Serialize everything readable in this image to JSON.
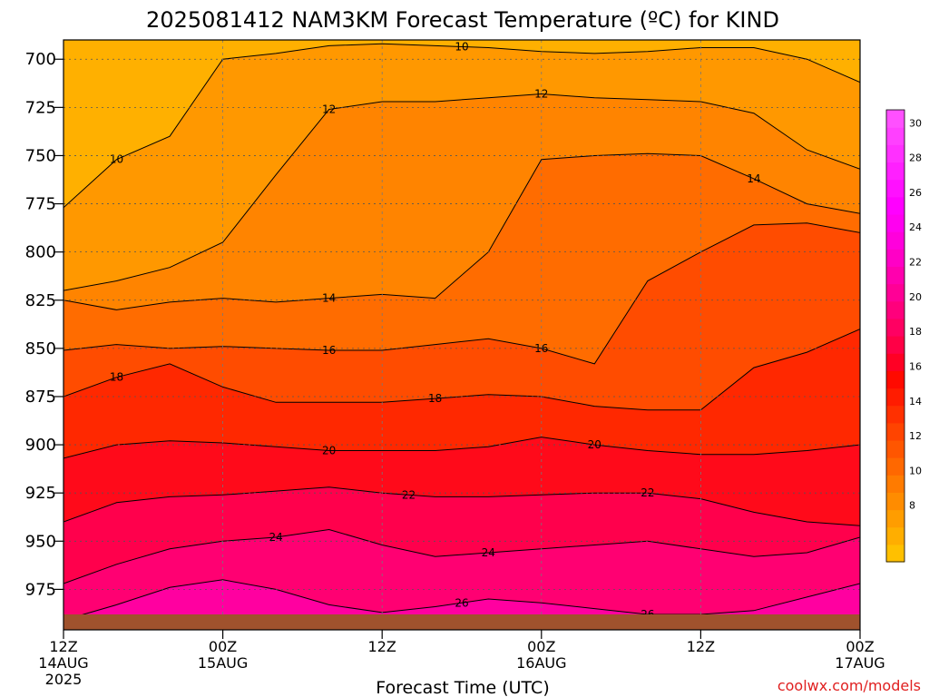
{
  "chart_data": {
    "type": "heatmap",
    "title": "2025081412 NAM3KM Forecast Temperature (ºC) for KIND",
    "xlabel": "Forecast Time (UTC)",
    "credit": "coolwx.com/models",
    "y_axis": {
      "ticks": [
        "700",
        "725",
        "750",
        "775",
        "800",
        "825",
        "850",
        "875",
        "900",
        "925",
        "950",
        "975"
      ],
      "range_hpa": [
        690,
        996
      ],
      "inverted": true,
      "grid": true
    },
    "x_axis": {
      "range_hours": [
        0,
        60
      ],
      "grid": true,
      "ticks": [
        {
          "hour": 0,
          "line1": "12Z",
          "line2": "14AUG",
          "line3": "2025"
        },
        {
          "hour": 12,
          "line1": "00Z",
          "line2": "15AUG",
          "line3": ""
        },
        {
          "hour": 24,
          "line1": "12Z",
          "line2": "",
          "line3": ""
        },
        {
          "hour": 36,
          "line1": "00Z",
          "line2": "16AUG",
          "line3": ""
        },
        {
          "hour": 48,
          "line1": "12Z",
          "line2": "",
          "line3": ""
        },
        {
          "hour": 60,
          "line1": "00Z",
          "line2": "17AUG",
          "line3": ""
        }
      ]
    },
    "colorbar": {
      "labels": [
        "8",
        "10",
        "12",
        "14",
        "16",
        "18",
        "20",
        "22",
        "24",
        "26",
        "28",
        "30"
      ],
      "levels": [
        6,
        7,
        8,
        9,
        10,
        11,
        12,
        13,
        14,
        15,
        16,
        17,
        18,
        19,
        20,
        21,
        22,
        23,
        24,
        25,
        26,
        27,
        28,
        29,
        30,
        31,
        32
      ],
      "colors": [
        "#ffc000",
        "#ffae00",
        "#ff9d00",
        "#ff8c00",
        "#ff7b00",
        "#ff6800",
        "#ff5600",
        "#ff4400",
        "#ff3000",
        "#ff1c00",
        "#ff0a00",
        "#ff0024",
        "#ff0046",
        "#ff0062",
        "#ff007c",
        "#ff0096",
        "#ff00ae",
        "#ff00c6",
        "#ff00dc",
        "#ff00f0",
        "#ff00ff",
        "#ff10ff",
        "#ff20ff",
        "#ff30ff",
        "#ff40ff",
        "#ff50ff"
      ]
    },
    "contour_labels": {
      "levels": [
        10,
        12,
        14,
        16,
        18,
        20,
        22,
        24,
        26
      ]
    },
    "x_hours": [
      0,
      4,
      8,
      12,
      16,
      20,
      24,
      28,
      32,
      36,
      40,
      44,
      48,
      52,
      56,
      60
    ],
    "series": [
      {
        "name": "10",
        "values": [
          777,
          752,
          740,
          700,
          697,
          693,
          692,
          693,
          694,
          696,
          697,
          696,
          694,
          694,
          700,
          712
        ]
      },
      {
        "name": "12",
        "values": [
          820,
          815,
          808,
          795,
          760,
          726,
          722,
          722,
          720,
          718,
          720,
          721,
          722,
          728,
          747,
          757
        ]
      },
      {
        "name": "14",
        "values": [
          825,
          830,
          826,
          824,
          826,
          824,
          822,
          824,
          800,
          752,
          750,
          749,
          750,
          762,
          775,
          780
        ]
      },
      {
        "name": "16",
        "values": [
          851,
          848,
          850,
          849,
          850,
          851,
          851,
          848,
          845,
          850,
          858,
          815,
          800,
          786,
          785,
          790
        ]
      },
      {
        "name": "18",
        "values": [
          875,
          865,
          858,
          870,
          878,
          878,
          878,
          876,
          874,
          875,
          880,
          882,
          882,
          860,
          852,
          840
        ]
      },
      {
        "name": "20",
        "values": [
          907,
          900,
          898,
          899,
          901,
          903,
          903,
          903,
          901,
          896,
          900,
          903,
          905,
          905,
          903,
          900
        ]
      },
      {
        "name": "22",
        "values": [
          940,
          930,
          927,
          926,
          924,
          922,
          925,
          927,
          927,
          926,
          925,
          925,
          928,
          935,
          940,
          942
        ]
      },
      {
        "name": "24",
        "values": [
          972,
          962,
          954,
          950,
          948,
          944,
          952,
          958,
          956,
          954,
          952,
          950,
          954,
          958,
          956,
          948
        ]
      },
      {
        "name": "26",
        "values": [
          991,
          983,
          974,
          970,
          975,
          983,
          987,
          984,
          980,
          982,
          985,
          988,
          988,
          986,
          979,
          972
        ]
      }
    ],
    "surface": {
      "color": "#a0522d",
      "hpa_top": 988
    }
  }
}
